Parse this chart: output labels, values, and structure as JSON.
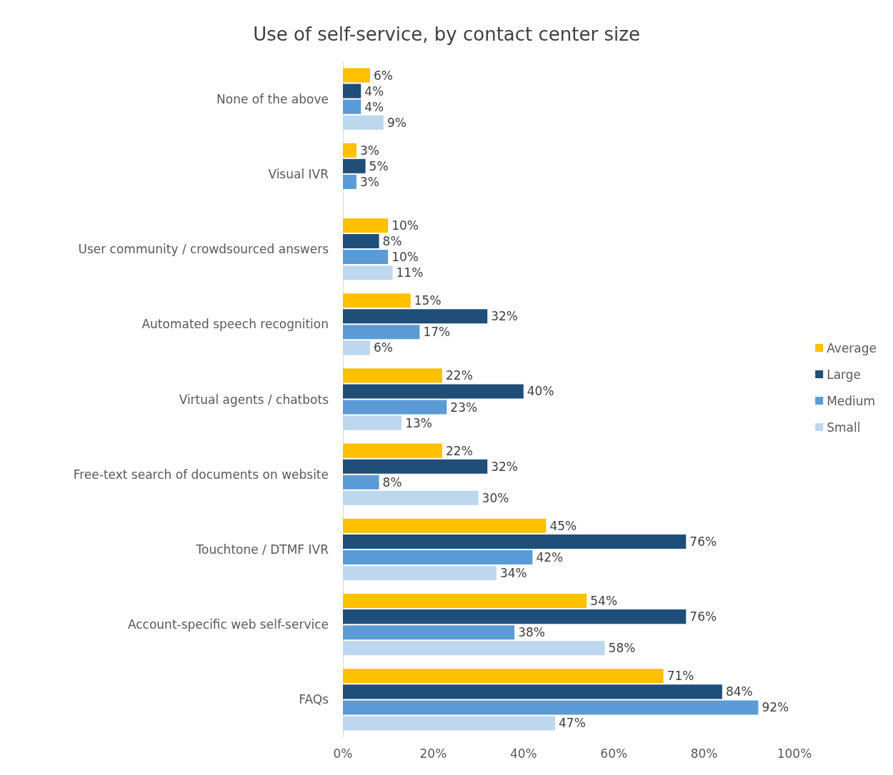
{
  "chart_data": {
    "type": "bar",
    "orientation": "horizontal",
    "title": "Use of self-service, by contact center size",
    "categories": [
      "None of the above",
      "Visual IVR",
      "User community / crowdsourced answers",
      "Automated speech recognition",
      "Virtual agents / chatbots",
      "Free-text search of documents on website",
      "Touchtone / DTMF IVR",
      "Account-specific web self-service",
      "FAQs"
    ],
    "series": [
      {
        "name": "Average",
        "color": "#ffc000",
        "values": [
          6,
          3,
          10,
          15,
          22,
          22,
          45,
          54,
          71
        ],
        "value_labels": [
          "6%",
          "3%",
          "10%",
          "15%",
          "22%",
          "22%",
          "45%",
          "54%",
          "71%"
        ]
      },
      {
        "name": "Large",
        "color": "#1f4e79",
        "values": [
          4,
          5,
          8,
          32,
          40,
          32,
          76,
          76,
          84
        ],
        "value_labels": [
          "4%",
          "5%",
          "8%",
          "32%",
          "40%",
          "32%",
          "76%",
          "76%",
          "84%"
        ]
      },
      {
        "name": "Medium",
        "color": "#5b9bd5",
        "values": [
          4,
          3,
          10,
          17,
          23,
          8,
          42,
          38,
          92
        ],
        "value_labels": [
          "4%",
          "3%",
          "10%",
          "17%",
          "23%",
          "8%",
          "42%",
          "38%",
          "92%"
        ]
      },
      {
        "name": "Small",
        "color": "#bdd7ee",
        "values": [
          9,
          null,
          11,
          6,
          13,
          30,
          34,
          58,
          47
        ],
        "value_labels": [
          "9%",
          null,
          "11%",
          "6%",
          "13%",
          "30%",
          "34%",
          "58%",
          "47%"
        ]
      }
    ],
    "xlim": [
      0,
      100
    ],
    "xticks": [
      {
        "value": 0,
        "label": "0%"
      },
      {
        "value": 20,
        "label": "20%"
      },
      {
        "value": 40,
        "label": "40%"
      },
      {
        "value": 60,
        "label": "60%"
      },
      {
        "value": 80,
        "label": "80%"
      },
      {
        "value": 100,
        "label": "100%"
      }
    ],
    "grid": false,
    "legend": "right"
  }
}
